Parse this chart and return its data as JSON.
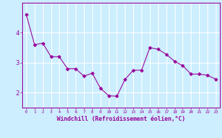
{
  "x": [
    0,
    1,
    2,
    3,
    4,
    5,
    6,
    7,
    8,
    9,
    10,
    11,
    12,
    13,
    14,
    15,
    16,
    17,
    18,
    19,
    20,
    21,
    22,
    23
  ],
  "y": [
    4.6,
    3.6,
    3.65,
    3.2,
    3.2,
    2.8,
    2.8,
    2.55,
    2.65,
    2.15,
    1.9,
    1.88,
    2.45,
    2.75,
    2.75,
    3.5,
    3.45,
    3.28,
    3.05,
    2.9,
    2.62,
    2.62,
    2.58,
    2.45
  ],
  "line_color": "#990099",
  "marker": "D",
  "marker_size": 2.5,
  "background_color": "#cceeff",
  "grid_color": "#ffffff",
  "xlabel": "Windchill (Refroidissement éolien,°C)",
  "xlabel_color": "#990099",
  "tick_color": "#990099",
  "axis_color": "#990099",
  "ylim": [
    1.5,
    5.0
  ],
  "xlim": [
    -0.5,
    23.5
  ],
  "yticks": [
    2,
    3,
    4
  ],
  "xtick_labels": [
    "0",
    "1",
    "2",
    "3",
    "4",
    "5",
    "6",
    "7",
    "8",
    "9",
    "10",
    "11",
    "12",
    "13",
    "14",
    "15",
    "16",
    "17",
    "18",
    "19",
    "20",
    "21",
    "22",
    "23"
  ]
}
